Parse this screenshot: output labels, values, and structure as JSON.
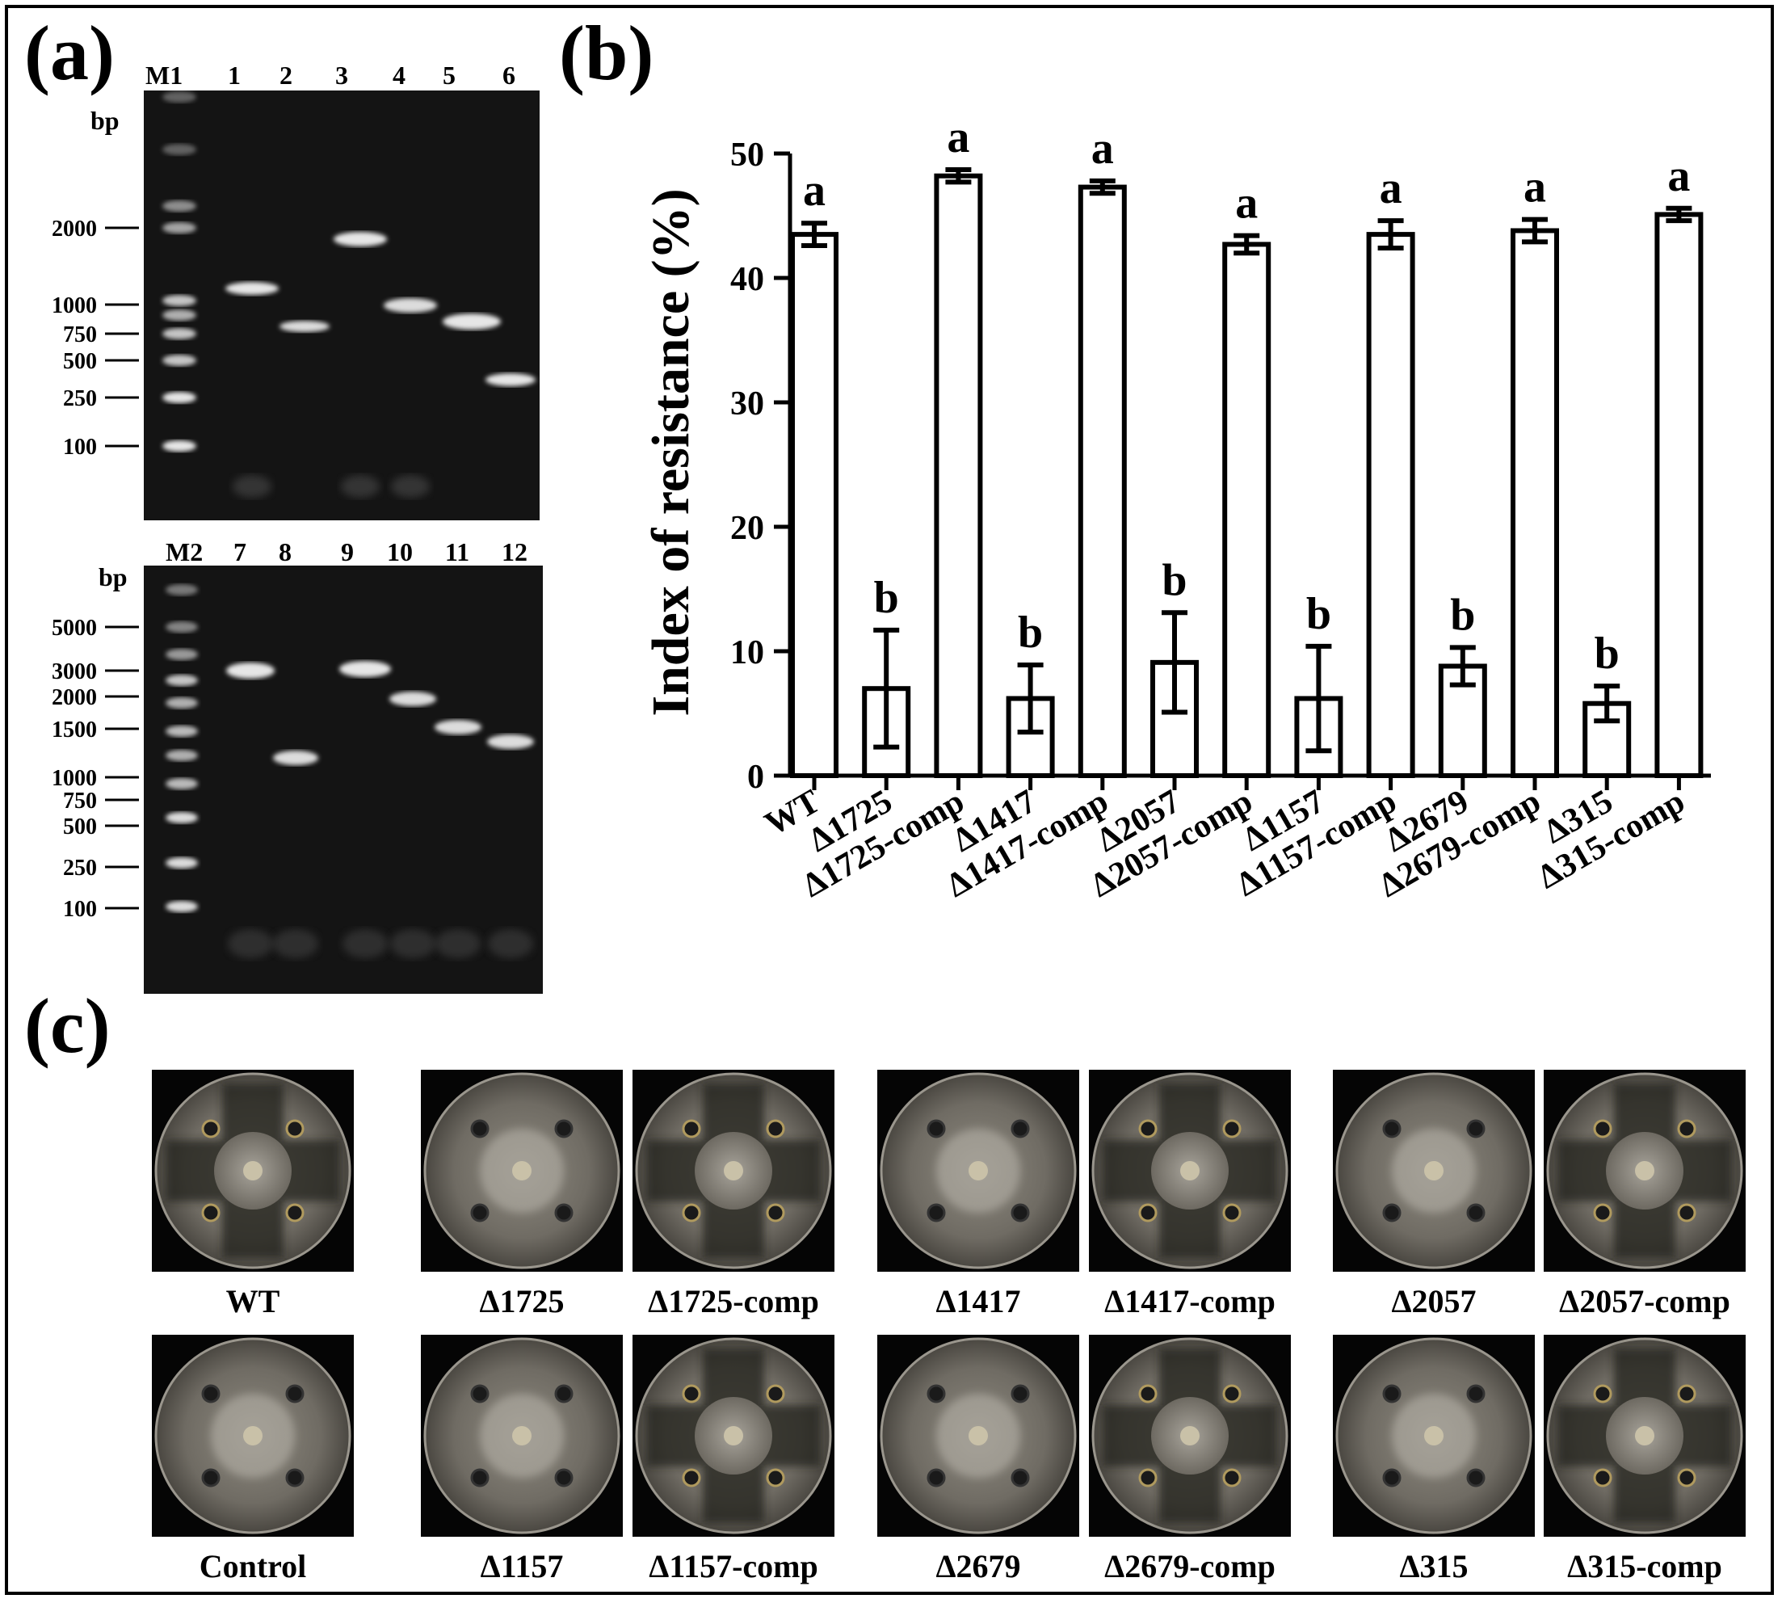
{
  "panels": {
    "a": {
      "label": "(a)",
      "top_gel": {
        "marker": "M1",
        "lanes": [
          "1",
          "2",
          "3",
          "4",
          "5",
          "6"
        ],
        "unit": "bp",
        "ladder": [
          "2000",
          "1000",
          "750",
          "500",
          "250",
          "100"
        ]
      },
      "bottom_gel": {
        "marker": "M2",
        "lanes": [
          "7",
          "8",
          "9",
          "10",
          "11",
          "12"
        ],
        "unit": "bp",
        "ladder": [
          "5000",
          "3000",
          "2000",
          "1500",
          "1000",
          "750",
          "500",
          "250",
          "100"
        ]
      }
    },
    "b": {
      "label": "(b)"
    },
    "c": {
      "label": "(c)",
      "plates_row1": [
        "WT",
        "Δ1725",
        "Δ1725-comp",
        "Δ1417",
        "Δ1417-comp",
        "Δ2057",
        "Δ2057-comp"
      ],
      "plates_row2": [
        "Control",
        "Δ1157",
        "Δ1157-comp",
        "Δ2679",
        "Δ2679-comp",
        "Δ315",
        "Δ315-comp"
      ]
    }
  },
  "chart_data": {
    "type": "bar",
    "categories": [
      "WT",
      "Δ1725",
      "Δ1725-comp",
      "Δ1417",
      "Δ1417-comp",
      "Δ2057",
      "Δ2057-comp",
      "Δ1157",
      "Δ1157-comp",
      "Δ2679",
      "Δ2679-comp",
      "Δ315",
      "Δ315-comp"
    ],
    "values": [
      43.5,
      7.0,
      48.2,
      6.2,
      47.3,
      9.1,
      42.7,
      6.2,
      43.5,
      8.8,
      43.8,
      5.8,
      45.1
    ],
    "errors": [
      0.9,
      4.7,
      0.5,
      2.7,
      0.5,
      4.0,
      0.7,
      4.2,
      1.1,
      1.5,
      0.9,
      1.4,
      0.5
    ],
    "significance": [
      "a",
      "b",
      "a",
      "b",
      "a",
      "b",
      "a",
      "b",
      "a",
      "b",
      "a",
      "b",
      "a"
    ],
    "ylabel": "Index of resistance (%)",
    "ylim": [
      0,
      50
    ],
    "yticks": [
      "0",
      "10",
      "20",
      "30",
      "40",
      "50"
    ],
    "grid": false,
    "colors": {
      "bar_fill": "#ffffff",
      "bar_stroke": "#000000"
    }
  }
}
